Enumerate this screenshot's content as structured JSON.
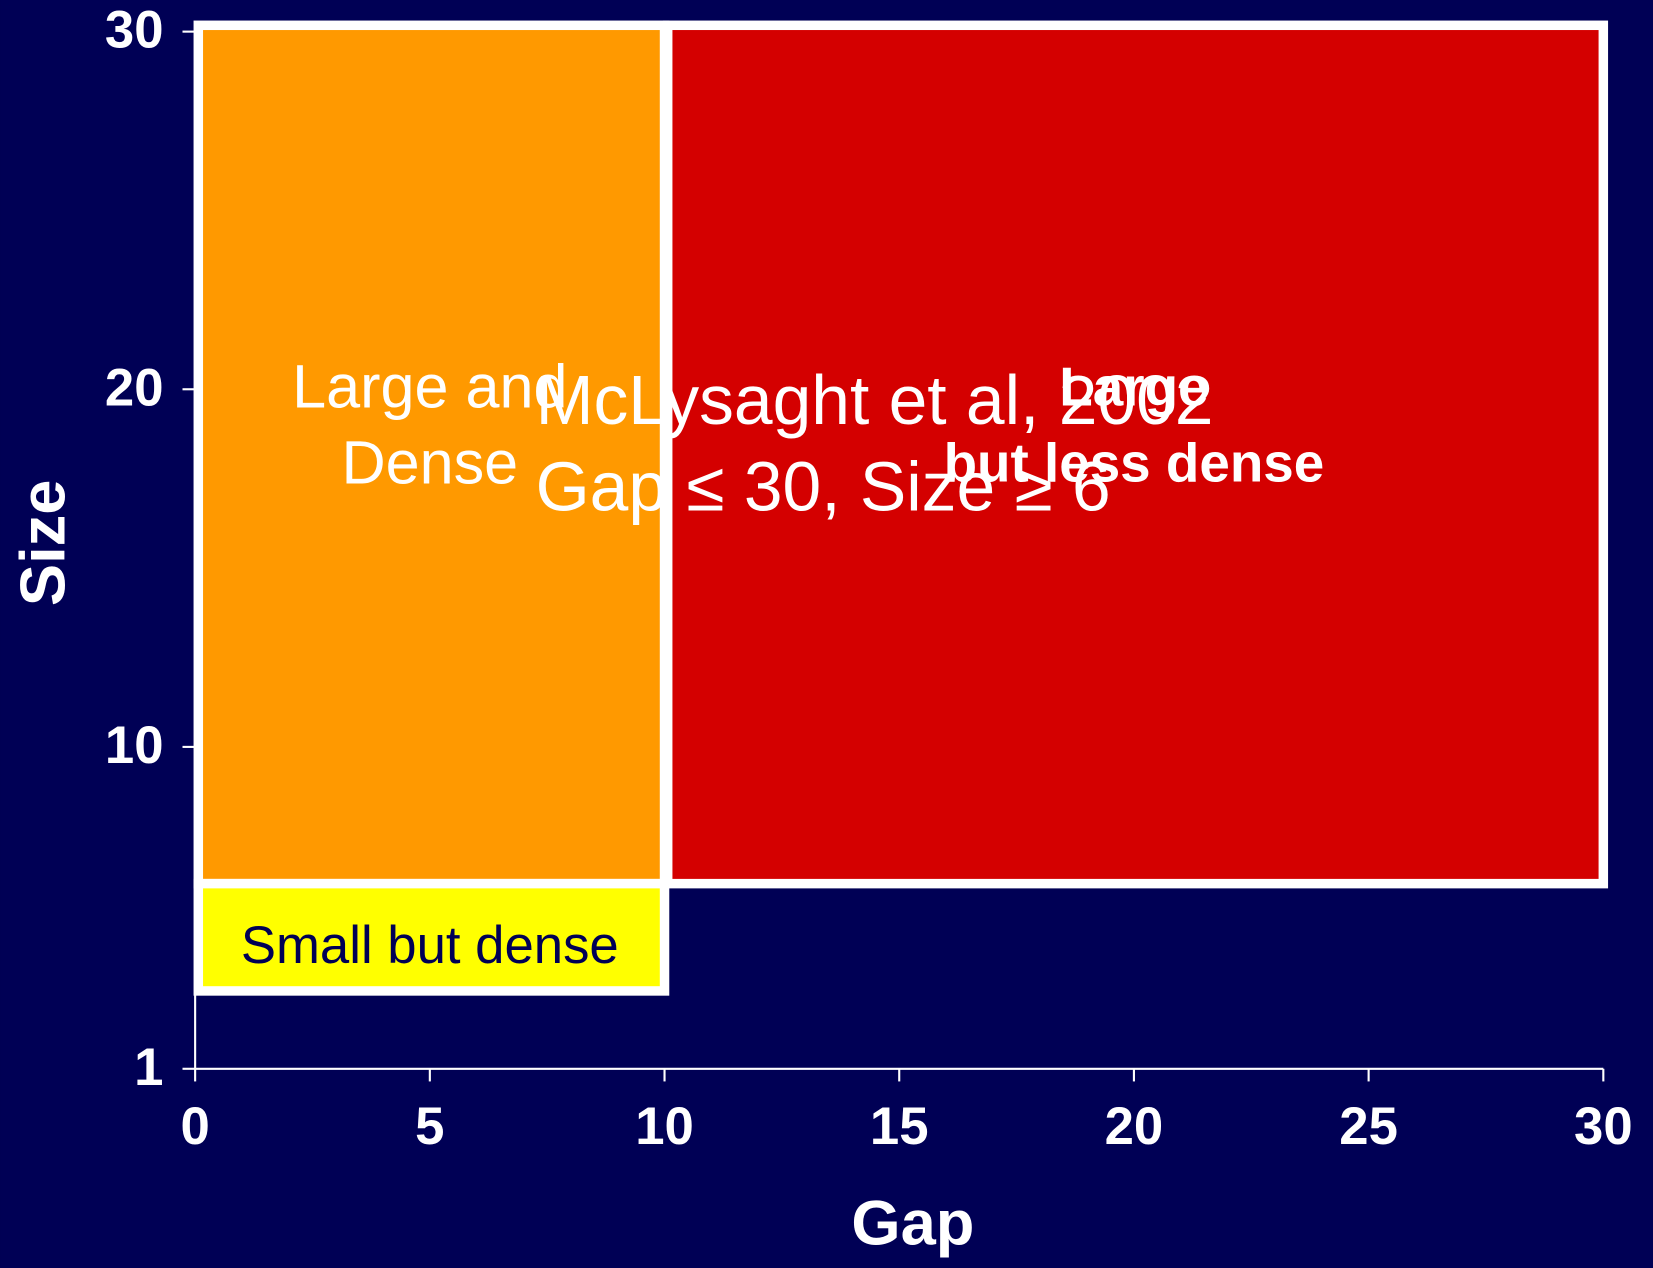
{
  "chart_data": {
    "type": "region",
    "xlabel": "Gap",
    "ylabel": "Size",
    "xlim": [
      0,
      30
    ],
    "ylim": [
      1,
      30
    ],
    "xticks": [
      0,
      5,
      10,
      15,
      20,
      25,
      30
    ],
    "yticks": [
      1,
      10,
      20,
      30
    ],
    "regions": [
      {
        "name": [
          "Large and",
          "Dense"
        ],
        "color": "#ff9900",
        "text_color": "#ffffff",
        "bold": false,
        "x": [
          0,
          10
        ],
        "y": [
          6,
          30
        ]
      },
      {
        "name": [
          "Large",
          "but less dense"
        ],
        "color": "#d40000",
        "text_color": "#ffffff",
        "bold": true,
        "x": [
          10,
          30
        ],
        "y": [
          6,
          30
        ]
      },
      {
        "name": [
          "Small but dense"
        ],
        "color": "#ffff00",
        "text_color": "#000055",
        "bold": false,
        "x": [
          0,
          10
        ],
        "y": [
          3,
          6
        ]
      }
    ],
    "annotation": [
      "McLysaght et al, 2002",
      "Gap ≤ 30, Size ≥ 6"
    ]
  }
}
